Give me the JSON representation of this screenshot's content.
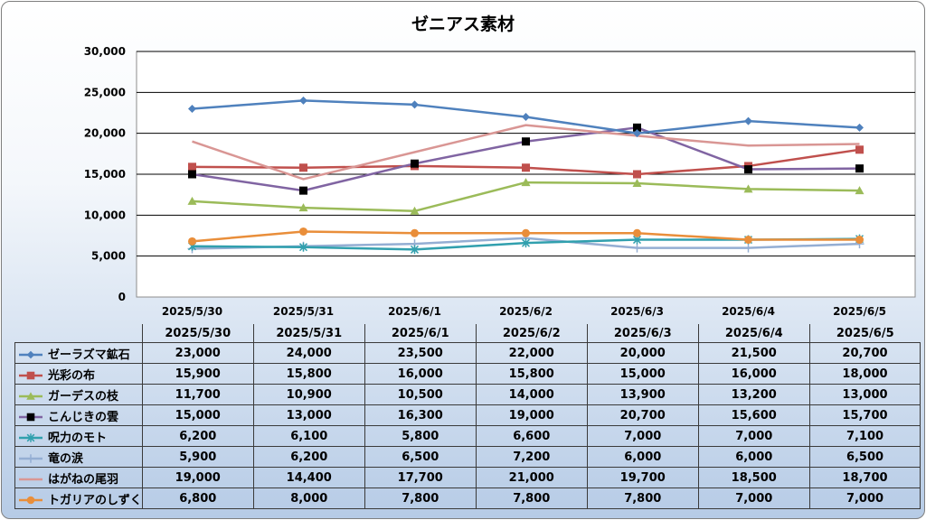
{
  "chart_data": {
    "type": "line",
    "title": "ゼニアス素材",
    "xlabel": "",
    "ylabel": "",
    "categories": [
      "2025/5/30",
      "2025/5/31",
      "2025/6/1",
      "2025/6/2",
      "2025/6/3",
      "2025/6/4",
      "2025/6/5"
    ],
    "y_ticks": [
      "0",
      "5,000",
      "10,000",
      "15,000",
      "20,000",
      "25,000",
      "30,000"
    ],
    "ylim": [
      0,
      30000
    ],
    "grid": "horizontal",
    "legend": "data-table",
    "series": [
      {
        "name": "ゼーラズマ鉱石",
        "color": "#4f81bd",
        "marker": "diamond",
        "values": [
          23000,
          24000,
          23500,
          22000,
          20000,
          21500,
          20700
        ],
        "labels": [
          "23,000",
          "24,000",
          "23,500",
          "22,000",
          "20,000",
          "21,500",
          "20,700"
        ]
      },
      {
        "name": "光彩の布",
        "color": "#c0504d",
        "marker": "square",
        "values": [
          15900,
          15800,
          16000,
          15800,
          15000,
          16000,
          18000
        ],
        "labels": [
          "15,900",
          "15,800",
          "16,000",
          "15,800",
          "15,000",
          "16,000",
          "18,000"
        ]
      },
      {
        "name": "ガーデスの枝",
        "color": "#9bbb59",
        "marker": "triangle",
        "values": [
          11700,
          10900,
          10500,
          14000,
          13900,
          13200,
          13000
        ],
        "labels": [
          "11,700",
          "10,900",
          "10,500",
          "14,000",
          "13,900",
          "13,200",
          "13,000"
        ]
      },
      {
        "name": "こんじきの雲",
        "color": "#8064a2",
        "marker": "blacksquare",
        "values": [
          15000,
          13000,
          16300,
          19000,
          20700,
          15600,
          15700
        ],
        "labels": [
          "15,000",
          "13,000",
          "16,300",
          "19,000",
          "20,700",
          "15,600",
          "15,700"
        ]
      },
      {
        "name": "呪力のモト",
        "color": "#31a0ae",
        "marker": "star",
        "values": [
          6200,
          6100,
          5800,
          6600,
          7000,
          7000,
          7100
        ],
        "labels": [
          "6,200",
          "6,100",
          "5,800",
          "6,600",
          "7,000",
          "7,000",
          "7,100"
        ]
      },
      {
        "name": "竜の涙",
        "color": "#94aed3",
        "marker": "plus",
        "values": [
          5900,
          6200,
          6500,
          7200,
          6000,
          6000,
          6500
        ],
        "labels": [
          "5,900",
          "6,200",
          "6,500",
          "7,200",
          "6,000",
          "6,000",
          "6,500"
        ]
      },
      {
        "name": "はがねの尾羽",
        "color": "#d99694",
        "marker": "none",
        "values": [
          19000,
          14400,
          17700,
          21000,
          19700,
          18500,
          18700
        ],
        "labels": [
          "19,000",
          "14,400",
          "17,700",
          "21,000",
          "19,700",
          "18,500",
          "18,700"
        ]
      },
      {
        "name": "トガリアのしずく",
        "color": "#e98e3a",
        "marker": "circle",
        "values": [
          6800,
          8000,
          7800,
          7800,
          7800,
          7000,
          7000
        ],
        "labels": [
          "6,800",
          "8,000",
          "7,800",
          "7,800",
          "7,800",
          "7,000",
          "7,000"
        ]
      }
    ]
  }
}
